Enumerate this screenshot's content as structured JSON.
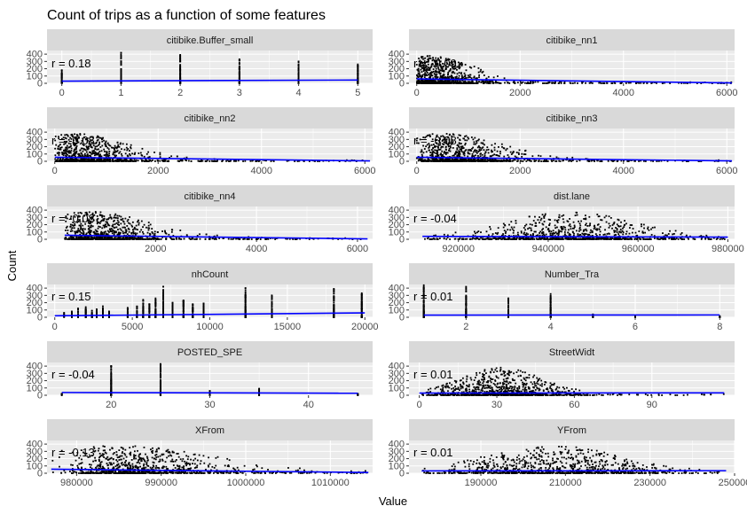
{
  "chart_data": {
    "type": "scatter",
    "title": "Count of trips as a function of some features",
    "xlabel": "Value",
    "ylabel": "Count",
    "y_ticks": [
      0,
      100,
      200,
      300,
      400
    ],
    "ylim": [
      0,
      450
    ],
    "fit_line_color": "#0000ff",
    "point_color": "#000000",
    "panel_background": "#ebebeb",
    "strip_background": "#d9d9d9",
    "grid_color": "#ffffff",
    "panels": [
      {
        "name": "citibike.Buffer_small",
        "r_label": "r = 0.18",
        "xlim": [
          -0.25,
          5.25
        ],
        "x_ticks": [
          0,
          1,
          2,
          3,
          4,
          5
        ],
        "x_tick_labels": [
          "0",
          "1",
          "2",
          "3",
          "4",
          "5"
        ],
        "distribution": "discrete",
        "discrete_values": [
          0,
          1,
          2,
          3,
          4,
          5
        ],
        "discrete_max": [
          180,
          420,
          390,
          330,
          300,
          260
        ],
        "fit": [
          [
            0,
            30
          ],
          [
            5,
            45
          ]
        ]
      },
      {
        "name": "citibike_nn1",
        "r_label": "r = -0.09",
        "xlim": [
          -150,
          6150
        ],
        "x_ticks": [
          0,
          2000,
          4000,
          6000
        ],
        "x_tick_labels": [
          "0",
          "2000",
          "4000",
          "6000"
        ],
        "distribution": "skewed",
        "data_range": [
          0,
          6100
        ],
        "peak": 200,
        "spread": 500,
        "fit": [
          [
            0,
            60
          ],
          [
            6100,
            5
          ]
        ]
      },
      {
        "name": "citibike_nn2",
        "r_label": "r = -0.08",
        "xlim": [
          -150,
          6150
        ],
        "x_ticks": [
          0,
          2000,
          4000,
          6000
        ],
        "x_tick_labels": [
          "0",
          "2000",
          "4000",
          "6000"
        ],
        "distribution": "skewed",
        "data_range": [
          0,
          6100
        ],
        "peak": 350,
        "spread": 600,
        "fit": [
          [
            0,
            55
          ],
          [
            6100,
            5
          ]
        ]
      },
      {
        "name": "citibike_nn3",
        "r_label": "r = -0.08",
        "xlim": [
          -150,
          6150
        ],
        "x_ticks": [
          0,
          2000,
          4000,
          6000
        ],
        "x_tick_labels": [
          "0",
          "2000",
          "4000",
          "6000"
        ],
        "distribution": "skewed",
        "data_range": [
          0,
          6100
        ],
        "peak": 500,
        "spread": 650,
        "fit": [
          [
            0,
            55
          ],
          [
            6100,
            5
          ]
        ]
      },
      {
        "name": "citibike_nn4",
        "r_label": "r = -0.08",
        "xlim": [
          -150,
          6300
        ],
        "x_ticks": [
          2000,
          4000,
          6000
        ],
        "x_tick_labels": [
          "2000",
          "4000",
          "6000"
        ],
        "distribution": "skewed",
        "data_range": [
          200,
          6200
        ],
        "peak": 650,
        "spread": 700,
        "fit": [
          [
            200,
            55
          ],
          [
            6200,
            5
          ]
        ]
      },
      {
        "name": "dist.lane",
        "r_label": "r = -0.04",
        "xlim": [
          909000,
          981500
        ],
        "x_ticks": [
          920000,
          940000,
          960000,
          980000
        ],
        "x_tick_labels": [
          "920000",
          "940000",
          "960000",
          "980000"
        ],
        "distribution": "normal",
        "data_range": [
          912000,
          980000
        ],
        "peak": 945000,
        "spread": 13000,
        "fit": [
          [
            912000,
            40
          ],
          [
            980000,
            30
          ]
        ]
      },
      {
        "name": "nhCount",
        "r_label": "r = 0.15",
        "xlim": [
          -500,
          20500
        ],
        "x_ticks": [
          0,
          5000,
          10000,
          15000,
          20000
        ],
        "x_tick_labels": [
          "0",
          "5000",
          "10000",
          "15000",
          "20000"
        ],
        "distribution": "discrete",
        "discrete_values": [
          600,
          1100,
          1500,
          2000,
          2400,
          2700,
          3100,
          3500,
          4700,
          5300,
          5700,
          6100,
          6500,
          7000,
          7600,
          8300,
          8900,
          9600,
          12300,
          14000,
          18000,
          19800
        ],
        "discrete_max": [
          60,
          80,
          120,
          140,
          90,
          110,
          150,
          80,
          130,
          150,
          240,
          180,
          260,
          420,
          200,
          230,
          180,
          190,
          400,
          300,
          390,
          330
        ],
        "fit": [
          [
            0,
            20
          ],
          [
            20000,
            60
          ]
        ]
      },
      {
        "name": "Number_Tra",
        "r_label": "r = 0.01",
        "xlim": [
          0.65,
          8.35
        ],
        "x_ticks": [
          2,
          4,
          6,
          8
        ],
        "x_tick_labels": [
          "2",
          "4",
          "6",
          "8"
        ],
        "distribution": "discrete",
        "discrete_values": [
          1,
          2,
          3,
          4,
          5,
          6,
          8
        ],
        "discrete_max": [
          440,
          420,
          260,
          320,
          40,
          20,
          15
        ],
        "fit": [
          [
            1,
            30
          ],
          [
            8,
            32
          ]
        ]
      },
      {
        "name": "POSTED_SPE",
        "r_label": "r = -0.04",
        "xlim": [
          13.5,
          46.5
        ],
        "x_ticks": [
          20,
          30,
          40
        ],
        "x_tick_labels": [
          "20",
          "30",
          "40"
        ],
        "distribution": "discrete",
        "discrete_values": [
          15,
          20,
          25,
          30,
          35,
          45
        ],
        "discrete_max": [
          20,
          400,
          430,
          60,
          90,
          20
        ],
        "fit": [
          [
            15,
            38
          ],
          [
            45,
            28
          ]
        ]
      },
      {
        "name": "StreetWidt",
        "r_label": "r = 0.01",
        "xlim": [
          -4,
          122
        ],
        "x_ticks": [
          0,
          30,
          60,
          90
        ],
        "x_tick_labels": [
          "0",
          "30",
          "60",
          "90"
        ],
        "distribution": "normal",
        "data_range": [
          0,
          118
        ],
        "peak": 32,
        "spread": 14,
        "fit": [
          [
            0,
            30
          ],
          [
            118,
            33
          ]
        ]
      },
      {
        "name": "XFrom",
        "r_label": "r = -0.13",
        "xlim": [
          976500,
          1015000
        ],
        "x_ticks": [
          980000,
          990000,
          1000000,
          1010000
        ],
        "x_tick_labels": [
          "980000",
          "990000",
          "1000000",
          "1010000"
        ],
        "distribution": "skewed",
        "data_range": [
          977000,
          1014500
        ],
        "peak": 984500,
        "spread": 6500,
        "fit": [
          [
            977000,
            55
          ],
          [
            1014500,
            10
          ]
        ]
      },
      {
        "name": "YFrom",
        "r_label": "r = 0.01",
        "xlim": [
          173000,
          250000
        ],
        "x_ticks": [
          190000,
          210000,
          230000,
          250000
        ],
        "x_tick_labels": [
          "190000",
          "210000",
          "230000",
          "250000"
        ],
        "distribution": "normal",
        "data_range": [
          176000,
          248000
        ],
        "peak": 207000,
        "spread": 14000,
        "fit": [
          [
            176000,
            32
          ],
          [
            248000,
            35
          ]
        ]
      }
    ]
  }
}
